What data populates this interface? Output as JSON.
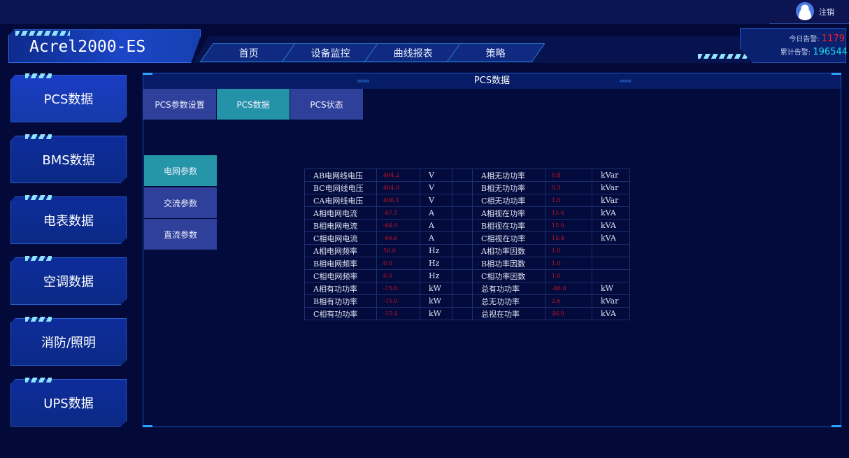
{
  "header": {
    "app_title": "Acrel2000-ES",
    "logout": "注销",
    "nav": [
      "首页",
      "设备监控",
      "曲线报表",
      "策略"
    ],
    "alerts": {
      "today_label": "今日告警:",
      "today_value": "1179",
      "total_label": "累计告警:",
      "total_value": "196544",
      "today_color": "#ff2020",
      "total_color": "#19e0f0"
    }
  },
  "sidebar": {
    "items": [
      "PCS数据",
      "BMS数据",
      "电表数据",
      "空调数据",
      "消防/照明",
      "UPS数据"
    ],
    "active": 0
  },
  "panel": {
    "title": "PCS数据",
    "tabs": [
      "PCS参数设置",
      "PCS数据",
      "PCS状态"
    ],
    "active_tab": 1,
    "subtabs": [
      "电网参数",
      "交流参数",
      "直流参数"
    ],
    "active_subtab": 0
  },
  "table": {
    "rows": [
      [
        "AB电网线电压",
        "404.2",
        "V",
        "A相无功功率",
        "0.8",
        "kVar"
      ],
      [
        "BC电网线电压",
        "404.0",
        "V",
        "B相无功功率",
        "0.3",
        "kVar"
      ],
      [
        "CA电网线电压",
        "406.1",
        "V",
        "C相无功功率",
        "1.5",
        "kVar"
      ],
      [
        "A相电网电流",
        "-67.1",
        "A",
        "A相视在功率",
        "15.6",
        "kVA"
      ],
      [
        "B相电网电流",
        "-64.0",
        "A",
        "B相视在功率",
        "15.0",
        "kVA"
      ],
      [
        "C相电网电流",
        "-66.6",
        "A",
        "C相视在功率",
        "15.4",
        "kVA"
      ],
      [
        "A相电网频率",
        "50.0",
        "Hz",
        "A相功率因数",
        "1.0",
        ""
      ],
      [
        "B相电网频率",
        "0.0",
        "Hz",
        "B相功率因数",
        "1.0",
        ""
      ],
      [
        "C相电网频率",
        "0.0",
        "Hz",
        "C相功率因数",
        "1.0",
        ""
      ],
      [
        "A相有功功率",
        "-15.6",
        "kW",
        "总有功功率",
        "-46.0",
        "kW"
      ],
      [
        "B相有功功率",
        "-15.0",
        "kW",
        "总无功功率",
        "2.6",
        "kVar"
      ],
      [
        "C相有功功率",
        "-15.4",
        "kW",
        "总视在功率",
        "46.0",
        "kVA"
      ]
    ]
  }
}
